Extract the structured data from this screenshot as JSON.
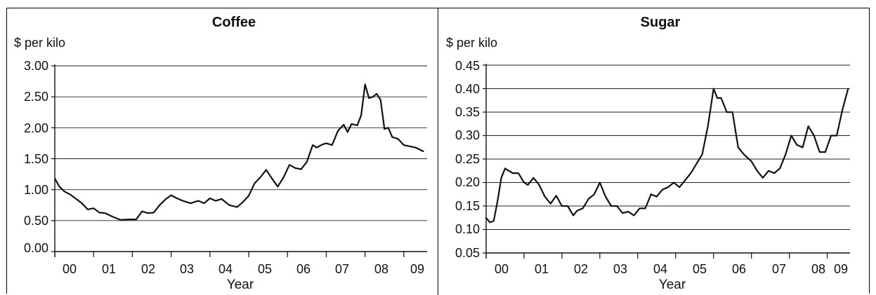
{
  "charts": [
    {
      "title": "Coffee",
      "unit_label": "$ per kilo",
      "xlabel": "Year",
      "y_ticks": [
        "0.00",
        "0.50",
        "1.00",
        "1.50",
        "2.00",
        "2.50",
        "3.00"
      ],
      "x_ticks": [
        "00",
        "01",
        "02",
        "03",
        "04",
        "05",
        "06",
        "07",
        "08",
        "09"
      ]
    },
    {
      "title": "Sugar",
      "unit_label": "$ per kilo",
      "xlabel": "Year",
      "y_ticks": [
        "0.05",
        "0.10",
        "0.15",
        "0.20",
        "0.25",
        "0.30",
        "0.35",
        "0.40",
        "0.45"
      ],
      "x_ticks": [
        "00",
        "01",
        "02",
        "03",
        "04",
        "05",
        "06",
        "07",
        "08",
        "09"
      ]
    }
  ],
  "chart_data": [
    {
      "type": "line",
      "title": "Coffee",
      "xlabel": "Year",
      "ylabel": "$ per kilo",
      "ylim": [
        0,
        3
      ],
      "xlim": [
        2000,
        2010
      ],
      "grid": true,
      "x_categories": [
        "00",
        "01",
        "02",
        "03",
        "04",
        "05",
        "06",
        "07",
        "08",
        "09"
      ],
      "series": [
        {
          "x": [
            2000.0,
            2000.12,
            2000.25,
            2000.4,
            2000.55,
            2000.7,
            2000.85,
            2001.0,
            2001.15,
            2001.3,
            2001.5,
            2001.7,
            2001.9,
            2002.1,
            2002.25,
            2002.4,
            2002.55,
            2002.7,
            2002.85,
            2003.0,
            2003.15,
            2003.3,
            2003.5,
            2003.7,
            2003.85,
            2004.0,
            2004.15,
            2004.3,
            2004.5,
            2004.7,
            2004.85,
            2005.0,
            2005.15,
            2005.3,
            2005.45,
            2005.6,
            2005.75,
            2005.9,
            2006.05,
            2006.2,
            2006.35,
            2006.5,
            2006.65,
            2006.75,
            2006.9,
            2007.0,
            2007.15,
            2007.3,
            2007.45,
            2007.55,
            2007.65,
            2007.8,
            2007.9,
            2008.0,
            2008.1,
            2008.2,
            2008.3,
            2008.4,
            2008.5,
            2008.6,
            2008.7,
            2008.85,
            2009.0,
            2009.15,
            2009.3,
            2009.5
          ],
          "values": [
            1.18,
            1.05,
            0.97,
            0.92,
            0.85,
            0.78,
            0.68,
            0.7,
            0.63,
            0.62,
            0.56,
            0.51,
            0.52,
            0.52,
            0.65,
            0.62,
            0.63,
            0.75,
            0.84,
            0.91,
            0.86,
            0.82,
            0.78,
            0.82,
            0.78,
            0.86,
            0.82,
            0.85,
            0.75,
            0.72,
            0.8,
            0.9,
            1.1,
            1.2,
            1.32,
            1.18,
            1.05,
            1.2,
            1.4,
            1.35,
            1.33,
            1.45,
            1.72,
            1.68,
            1.73,
            1.75,
            1.72,
            1.95,
            2.05,
            1.93,
            2.06,
            2.04,
            2.2,
            2.7,
            2.48,
            2.5,
            2.55,
            2.45,
            1.98,
            2.0,
            1.85,
            1.82,
            1.72,
            1.7,
            1.68,
            1.62
          ]
        }
      ]
    },
    {
      "type": "line",
      "title": "Sugar",
      "xlabel": "Year",
      "ylabel": "$ per kilo",
      "ylim": [
        0.05,
        0.45
      ],
      "xlim": [
        2000,
        2010
      ],
      "grid": true,
      "x_categories": [
        "00",
        "01",
        "02",
        "03",
        "04",
        "05",
        "06",
        "07",
        "08",
        "09"
      ],
      "series": [
        {
          "x": [
            2000.0,
            2000.1,
            2000.2,
            2000.3,
            2000.4,
            2000.5,
            2000.6,
            2000.7,
            2000.85,
            2001.0,
            2001.1,
            2001.25,
            2001.4,
            2001.55,
            2001.7,
            2001.85,
            2002.0,
            2002.15,
            2002.3,
            2002.4,
            2002.55,
            2002.7,
            2002.85,
            2003.0,
            2003.15,
            2003.3,
            2003.45,
            2003.6,
            2003.75,
            2003.9,
            2004.05,
            2004.2,
            2004.35,
            2004.5,
            2004.65,
            2004.8,
            2004.95,
            2005.1,
            2005.25,
            2005.4,
            2005.55,
            2005.7,
            2005.85,
            2006.0,
            2006.1,
            2006.2,
            2006.35,
            2006.5,
            2006.65,
            2006.8,
            2007.0,
            2007.15,
            2007.3,
            2007.45,
            2007.6,
            2007.75,
            2007.9,
            2008.05,
            2008.2,
            2008.35,
            2008.5,
            2008.65,
            2008.8,
            2008.95,
            2009.1,
            2009.25,
            2009.4,
            2009.55
          ],
          "values": [
            0.125,
            0.115,
            0.118,
            0.16,
            0.21,
            0.23,
            0.225,
            0.22,
            0.22,
            0.2,
            0.195,
            0.21,
            0.195,
            0.17,
            0.155,
            0.172,
            0.15,
            0.15,
            0.13,
            0.14,
            0.145,
            0.165,
            0.175,
            0.2,
            0.17,
            0.15,
            0.15,
            0.135,
            0.138,
            0.13,
            0.145,
            0.145,
            0.175,
            0.17,
            0.185,
            0.19,
            0.2,
            0.19,
            0.205,
            0.22,
            0.24,
            0.26,
            0.32,
            0.4,
            0.38,
            0.38,
            0.35,
            0.35,
            0.275,
            0.26,
            0.245,
            0.225,
            0.21,
            0.225,
            0.22,
            0.23,
            0.26,
            0.3,
            0.28,
            0.275,
            0.32,
            0.3,
            0.265,
            0.265,
            0.3,
            0.3,
            0.355,
            0.4
          ]
        }
      ]
    }
  ]
}
